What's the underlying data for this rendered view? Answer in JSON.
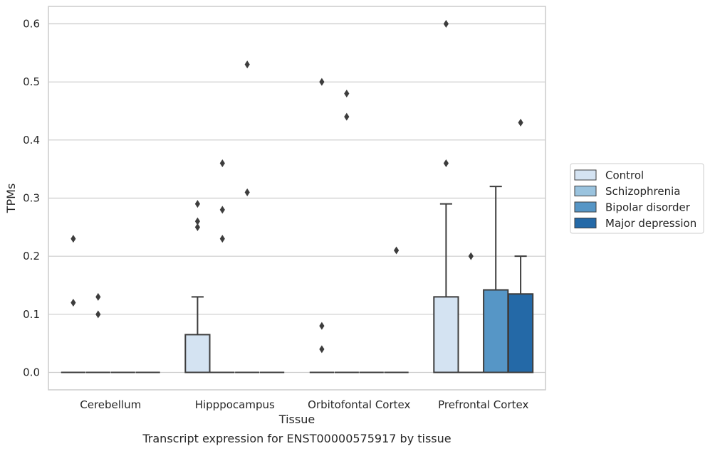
{
  "chart_data": {
    "type": "box",
    "title": "",
    "caption": "Transcript expression for ENST00000575917 by tissue",
    "xlabel": "Tissue",
    "ylabel": "TPMs",
    "ylim": [
      -0.03,
      0.63
    ],
    "yticks": [
      0.0,
      0.1,
      0.2,
      0.3,
      0.4,
      0.5,
      0.6
    ],
    "ytick_labels": [
      "0.0",
      "0.1",
      "0.2",
      "0.3",
      "0.4",
      "0.5",
      "0.6"
    ],
    "grid": "horizontal",
    "legend_position": "right",
    "categories": [
      "Cerebellum",
      "Hipppocampus",
      "Orbitofontal Cortex",
      "Prefrontal Cortex"
    ],
    "series": [
      {
        "name": "Control",
        "color": "#d4e3f2",
        "boxes": [
          {
            "q1": 0,
            "median": 0,
            "q3": 0,
            "whislo": 0,
            "whishi": 0,
            "fliers": [
              0.23,
              0.12
            ]
          },
          {
            "q1": 0,
            "median": 0,
            "q3": 0.065,
            "whislo": 0,
            "whishi": 0.13,
            "fliers": [
              0.29,
              0.26,
              0.25
            ]
          },
          {
            "q1": 0,
            "median": 0,
            "q3": 0,
            "whislo": 0,
            "whishi": 0,
            "fliers": [
              0.5,
              0.08,
              0.04
            ]
          },
          {
            "q1": 0,
            "median": 0,
            "q3": 0.13,
            "whislo": 0,
            "whishi": 0.29,
            "fliers": [
              0.6,
              0.36
            ]
          }
        ]
      },
      {
        "name": "Schizophrenia",
        "color": "#9ac3de",
        "boxes": [
          {
            "q1": 0,
            "median": 0,
            "q3": 0,
            "whislo": 0,
            "whishi": 0,
            "fliers": [
              0.13,
              0.1
            ]
          },
          {
            "q1": 0,
            "median": 0,
            "q3": 0,
            "whislo": 0,
            "whishi": 0,
            "fliers": [
              0.36,
              0.28,
              0.23
            ]
          },
          {
            "q1": 0,
            "median": 0,
            "q3": 0,
            "whislo": 0,
            "whishi": 0,
            "fliers": [
              0.48,
              0.44
            ]
          },
          {
            "q1": 0,
            "median": 0,
            "q3": 0,
            "whislo": 0,
            "whishi": 0,
            "fliers": [
              0.2
            ]
          }
        ]
      },
      {
        "name": "Bipolar disorder",
        "color": "#5696c6",
        "boxes": [
          {
            "q1": 0,
            "median": 0,
            "q3": 0,
            "whislo": 0,
            "whishi": 0,
            "fliers": []
          },
          {
            "q1": 0,
            "median": 0,
            "q3": 0,
            "whislo": 0,
            "whishi": 0,
            "fliers": [
              0.53,
              0.31
            ]
          },
          {
            "q1": 0,
            "median": 0,
            "q3": 0,
            "whislo": 0,
            "whishi": 0,
            "fliers": []
          },
          {
            "q1": 0,
            "median": 0,
            "q3": 0.142,
            "whislo": 0,
            "whishi": 0.32,
            "fliers": []
          }
        ]
      },
      {
        "name": "Major depression",
        "color": "#2469a7",
        "boxes": [
          {
            "q1": 0,
            "median": 0,
            "q3": 0,
            "whislo": 0,
            "whishi": 0,
            "fliers": []
          },
          {
            "q1": 0,
            "median": 0,
            "q3": 0,
            "whislo": 0,
            "whishi": 0,
            "fliers": []
          },
          {
            "q1": 0,
            "median": 0,
            "q3": 0,
            "whislo": 0,
            "whishi": 0,
            "fliers": [
              0.21
            ]
          },
          {
            "q1": 0,
            "median": 0,
            "q3": 0.135,
            "whislo": 0,
            "whishi": 0.2,
            "fliers": [
              0.43
            ]
          }
        ]
      }
    ]
  }
}
